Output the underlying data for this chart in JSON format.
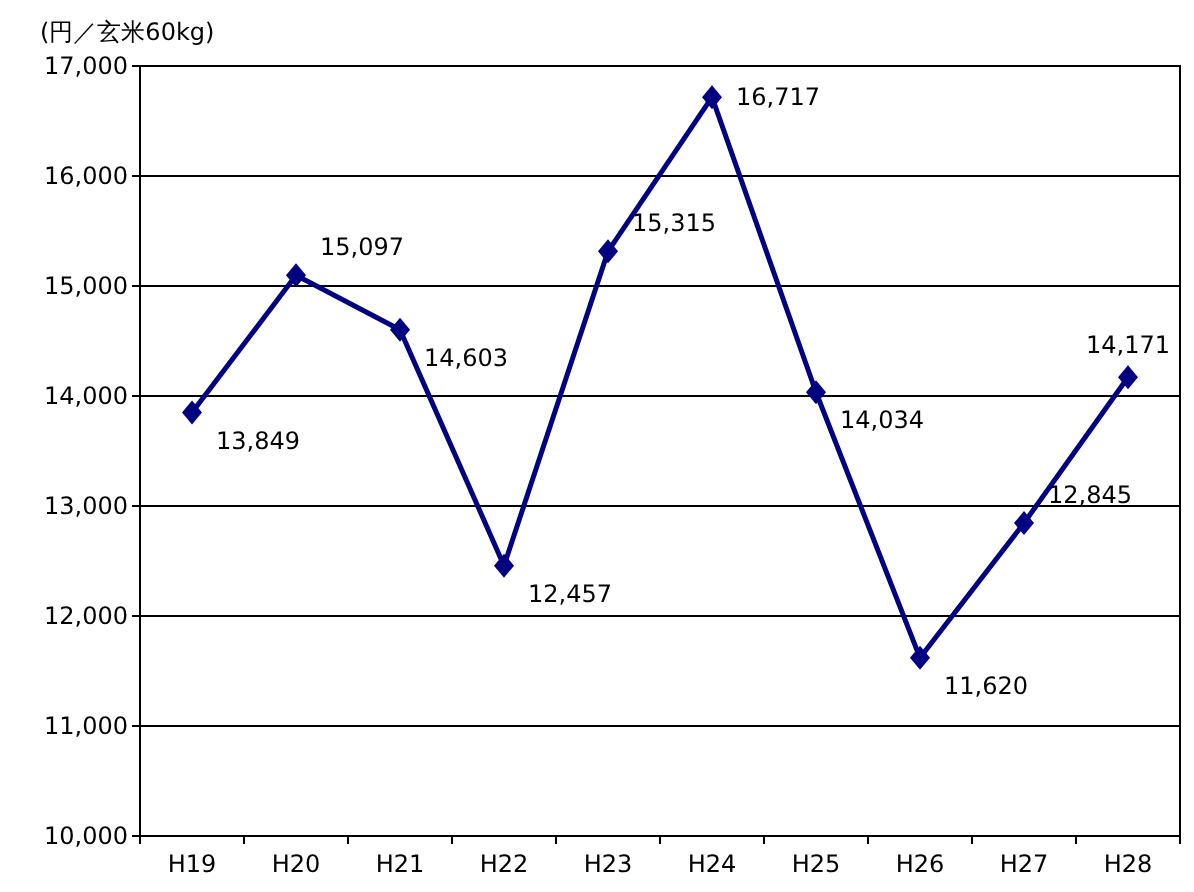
{
  "chart_data": {
    "type": "line",
    "ylabel": "(円／玄米60kg)",
    "categories": [
      "H19",
      "H20",
      "H21",
      "H22",
      "H23",
      "H24",
      "H25",
      "H26",
      "H27",
      "H28"
    ],
    "series": [
      {
        "color": "#000080",
        "values": [
          13849,
          15097,
          14603,
          12457,
          15315,
          16717,
          14034,
          11620,
          12845,
          14171
        ],
        "value_labels": [
          "13,849",
          "15,097",
          "14,603",
          "12,457",
          "15,315",
          "16,717",
          "14,034",
          "11,620",
          "12,845",
          "14,171"
        ]
      }
    ],
    "ylim": [
      10000,
      17000
    ],
    "yticks": [
      {
        "value": 10000,
        "label": "10,000"
      },
      {
        "value": 11000,
        "label": "11,000"
      },
      {
        "value": 12000,
        "label": "12,000"
      },
      {
        "value": 13000,
        "label": "13,000"
      },
      {
        "value": 14000,
        "label": "14,000"
      },
      {
        "value": 15000,
        "label": "15,000"
      },
      {
        "value": 16000,
        "label": "16,000"
      },
      {
        "value": 17000,
        "label": "17,000"
      }
    ],
    "grid": "y",
    "marker": "diamond",
    "line_style": "solid"
  }
}
